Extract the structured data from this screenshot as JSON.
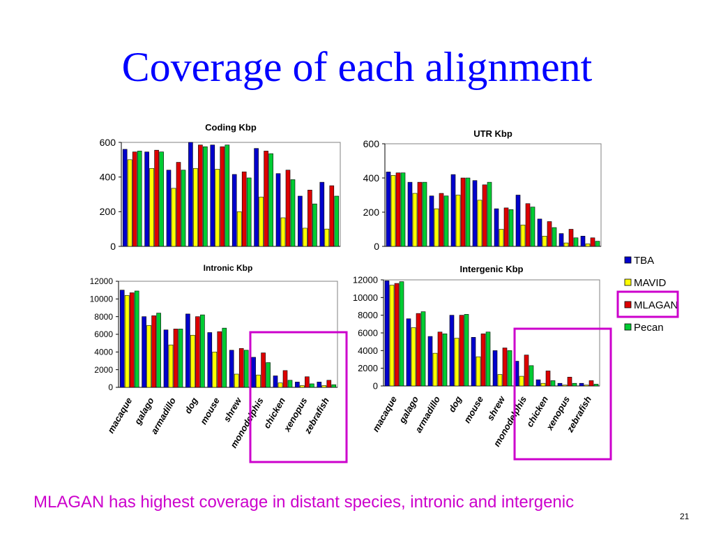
{
  "slide": {
    "title": "Coverage of each alignment",
    "footer_note": "MLAGAN has highest coverage in distant species, intronic and intergenic",
    "page_number": "21"
  },
  "colors": {
    "TBA": "#0000cc",
    "MAVID": "#ffff00",
    "MLAGAN": "#dd0000",
    "Pecan": "#00cc33",
    "highlight": "#cc00cc",
    "title": "#0000ff"
  },
  "legend": {
    "items": [
      "TBA",
      "MAVID",
      "MLAGAN",
      "Pecan"
    ],
    "highlighted": "MLAGAN",
    "placement": "right"
  },
  "chart_data": [
    {
      "type": "bar",
      "title": "Coding Kbp",
      "categories": [
        "macaque",
        "galago",
        "armadillo",
        "dog",
        "mouse",
        "shrew",
        "monodelphis",
        "chicken",
        "xenopus",
        "zebrafish"
      ],
      "ylim": [
        0,
        600
      ],
      "yticks": [
        0,
        200,
        400,
        600
      ],
      "series": [
        {
          "name": "TBA",
          "values": [
            560,
            545,
            440,
            600,
            585,
            415,
            565,
            420,
            290,
            370
          ]
        },
        {
          "name": "MAVID",
          "values": [
            500,
            450,
            335,
            450,
            445,
            200,
            285,
            165,
            105,
            100
          ]
        },
        {
          "name": "MLAGAN",
          "values": [
            545,
            555,
            485,
            585,
            575,
            430,
            550,
            440,
            325,
            350
          ]
        },
        {
          "name": "Pecan",
          "values": [
            550,
            545,
            440,
            575,
            585,
            395,
            535,
            385,
            245,
            290
          ]
        }
      ]
    },
    {
      "type": "bar",
      "title": "UTR Kbp",
      "categories": [
        "macaque",
        "galago",
        "armadillo",
        "dog",
        "mouse",
        "shrew",
        "monodelphis",
        "chicken",
        "xenopus",
        "zebrafish"
      ],
      "ylim": [
        0,
        600
      ],
      "yticks": [
        0,
        200,
        400,
        600
      ],
      "series": [
        {
          "name": "TBA",
          "values": [
            435,
            375,
            295,
            420,
            385,
            220,
            300,
            160,
            75,
            60
          ]
        },
        {
          "name": "MAVID",
          "values": [
            415,
            310,
            220,
            300,
            270,
            100,
            125,
            60,
            20,
            15
          ]
        },
        {
          "name": "MLAGAN",
          "values": [
            430,
            375,
            310,
            400,
            360,
            225,
            250,
            145,
            100,
            50
          ]
        },
        {
          "name": "Pecan",
          "values": [
            430,
            375,
            295,
            400,
            375,
            215,
            230,
            110,
            50,
            30
          ]
        }
      ]
    },
    {
      "type": "bar",
      "title": "Intronic Kbp",
      "categories": [
        "macaque",
        "galago",
        "armadillo",
        "dog",
        "mouse",
        "shrew",
        "monodelphis",
        "chicken",
        "xenopus",
        "zebrafish"
      ],
      "ylim": [
        0,
        12000
      ],
      "yticks": [
        0,
        2000,
        4000,
        6000,
        8000,
        10000,
        12000
      ],
      "series": [
        {
          "name": "TBA",
          "values": [
            11000,
            8000,
            6500,
            8300,
            6200,
            4200,
            3400,
            1300,
            600,
            600
          ]
        },
        {
          "name": "MAVID",
          "values": [
            10400,
            7000,
            4800,
            5900,
            4000,
            1500,
            1400,
            500,
            200,
            200
          ]
        },
        {
          "name": "MLAGAN",
          "values": [
            10700,
            8100,
            6600,
            8000,
            6300,
            4400,
            3900,
            1900,
            1200,
            800
          ]
        },
        {
          "name": "Pecan",
          "values": [
            10900,
            8400,
            6600,
            8200,
            6700,
            4200,
            2800,
            800,
            400,
            300
          ]
        }
      ]
    },
    {
      "type": "bar",
      "title": "Intergenic Kbp",
      "categories": [
        "macaque",
        "galago",
        "armadillo",
        "dog",
        "mouse",
        "shrew",
        "monodelphis",
        "chicken",
        "xenopus",
        "zebrafish"
      ],
      "ylim": [
        0,
        12000
      ],
      "yticks": [
        0,
        2000,
        4000,
        6000,
        8000,
        10000,
        12000
      ],
      "series": [
        {
          "name": "TBA",
          "values": [
            11900,
            7600,
            5600,
            8000,
            5500,
            4000,
            2800,
            700,
            300,
            300
          ]
        },
        {
          "name": "MAVID",
          "values": [
            11400,
            6600,
            3700,
            5400,
            3300,
            1300,
            1100,
            300,
            100,
            100
          ]
        },
        {
          "name": "MLAGAN",
          "values": [
            11600,
            8200,
            6100,
            8000,
            5900,
            4300,
            3500,
            1700,
            1000,
            600
          ]
        },
        {
          "name": "Pecan",
          "values": [
            11800,
            8400,
            5900,
            8100,
            6100,
            4000,
            2300,
            600,
            300,
            200
          ]
        }
      ]
    }
  ]
}
